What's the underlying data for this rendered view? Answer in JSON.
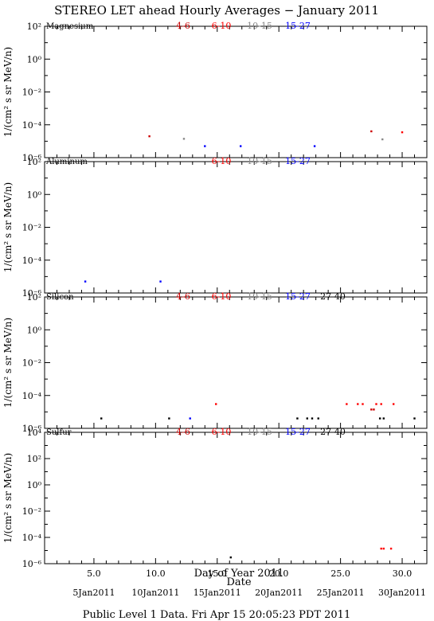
{
  "title": "STEREO LET ahead Hourly Averages − January 2011",
  "xlabel": "Day of Year 2011",
  "date_label": "Date",
  "footer": "Public Level 1 Data. Fri Apr 15 20:05:23 PDT 2011",
  "colors": {
    "4-6": "#cc0000",
    "6-10": "#ff0000",
    "10-15": "#888888",
    "15-27": "#0000ff",
    "27-40": "#000000"
  },
  "chart_data": {
    "type": "scatter",
    "xlim": [
      1,
      32
    ],
    "x_ticks": [
      {
        "value": 5,
        "label": "5.0"
      },
      {
        "value": 10,
        "label": "10.0"
      },
      {
        "value": 15,
        "label": "15.0"
      },
      {
        "value": 20,
        "label": "20.0"
      },
      {
        "value": 25,
        "label": "25.0"
      },
      {
        "value": 30,
        "label": "30.0"
      }
    ],
    "date_ticks": [
      {
        "value": 5,
        "label": "5Jan2011"
      },
      {
        "value": 10,
        "label": "10Jan2011"
      },
      {
        "value": 15,
        "label": "15Jan2011"
      },
      {
        "value": 20,
        "label": "20Jan2011"
      },
      {
        "value": 25,
        "label": "25Jan2011"
      },
      {
        "value": 30,
        "label": "30Jan2011"
      }
    ],
    "ylabel": "1/(cm² s sr MeV/n)",
    "y_scale": "log",
    "panels": [
      {
        "name": "Magnesium",
        "ylim_exp": [
          -6,
          2
        ],
        "y_ticks": [
          {
            "exp": 2,
            "label": "10²"
          },
          {
            "exp": 0,
            "label": "10⁰"
          },
          {
            "exp": -2,
            "label": "10⁻²"
          },
          {
            "exp": -4,
            "label": "10⁻⁴"
          },
          {
            "exp": -6,
            "label": "10⁻⁶"
          }
        ],
        "legend": [
          "4-6",
          "6-10",
          "10-15",
          "15-27"
        ],
        "series": [
          {
            "name": "4-6",
            "points": [
              [
                9.5,
                2e-05
              ],
              [
                27.5,
                4e-05
              ]
            ]
          },
          {
            "name": "6-10",
            "points": [
              [
                30.0,
                3.5e-05
              ]
            ]
          },
          {
            "name": "10-15",
            "points": [
              [
                12.3,
                1.4e-05
              ],
              [
                28.4,
                1.3e-05
              ]
            ]
          },
          {
            "name": "15-27",
            "points": [
              [
                14.0,
                5e-06
              ],
              [
                16.9,
                5e-06
              ],
              [
                22.9,
                5e-06
              ]
            ]
          }
        ]
      },
      {
        "name": "Aluminum",
        "ylim_exp": [
          -6,
          2
        ],
        "y_ticks": [
          {
            "exp": 2,
            "label": "10²"
          },
          {
            "exp": 0,
            "label": "10⁰"
          },
          {
            "exp": -2,
            "label": "10⁻²"
          },
          {
            "exp": -4,
            "label": "10⁻⁴"
          },
          {
            "exp": -6,
            "label": "10⁻⁶"
          }
        ],
        "legend": [
          "6-10",
          "10-15",
          "15-27"
        ],
        "series": [
          {
            "name": "15-27",
            "points": [
              [
                4.3,
                5e-06
              ],
              [
                10.4,
                5e-06
              ]
            ]
          }
        ]
      },
      {
        "name": "Silicon",
        "ylim_exp": [
          -6,
          2
        ],
        "y_ticks": [
          {
            "exp": 2,
            "label": "10²"
          },
          {
            "exp": 0,
            "label": "10⁰"
          },
          {
            "exp": -2,
            "label": "10⁻²"
          },
          {
            "exp": -4,
            "label": "10⁻⁴"
          },
          {
            "exp": -6,
            "label": "10⁻⁶"
          }
        ],
        "legend": [
          "4-6",
          "6-10",
          "10-15",
          "15-27",
          "27-40"
        ],
        "series": [
          {
            "name": "4-6",
            "points": [
              [
                27.5,
                1.4e-05
              ],
              [
                27.7,
                1.4e-05
              ]
            ]
          },
          {
            "name": "6-10",
            "points": [
              [
                14.9,
                3e-05
              ],
              [
                25.5,
                3e-05
              ],
              [
                26.4,
                3e-05
              ],
              [
                26.8,
                3e-05
              ],
              [
                27.9,
                3e-05
              ],
              [
                28.3,
                3e-05
              ],
              [
                29.3,
                3e-05
              ]
            ]
          },
          {
            "name": "15-27",
            "points": [
              [
                12.8,
                4e-06
              ]
            ]
          },
          {
            "name": "27-40",
            "points": [
              [
                5.6,
                4e-06
              ],
              [
                11.1,
                4e-06
              ],
              [
                21.5,
                4e-06
              ],
              [
                22.3,
                4e-06
              ],
              [
                22.7,
                4e-06
              ],
              [
                23.2,
                4e-06
              ],
              [
                28.2,
                4e-06
              ],
              [
                28.5,
                4e-06
              ],
              [
                31.0,
                4e-06
              ]
            ]
          }
        ]
      },
      {
        "name": "Sulfur",
        "ylim_exp": [
          -6,
          4
        ],
        "y_ticks": [
          {
            "exp": 4,
            "label": "10⁴"
          },
          {
            "exp": 2,
            "label": "10²"
          },
          {
            "exp": 0,
            "label": "10⁰"
          },
          {
            "exp": -2,
            "label": "10⁻²"
          },
          {
            "exp": -4,
            "label": "10⁻⁴"
          },
          {
            "exp": -6,
            "label": "10⁻⁶"
          }
        ],
        "legend": [
          "4-6",
          "6-10",
          "10-15",
          "15-27",
          "27-40"
        ],
        "series": [
          {
            "name": "6-10",
            "points": [
              [
                28.3,
                1.4e-05
              ],
              [
                28.5,
                1.4e-05
              ],
              [
                29.1,
                1.4e-05
              ]
            ]
          },
          {
            "name": "27-40",
            "points": [
              [
                16.1,
                3e-06
              ]
            ]
          }
        ]
      }
    ]
  }
}
